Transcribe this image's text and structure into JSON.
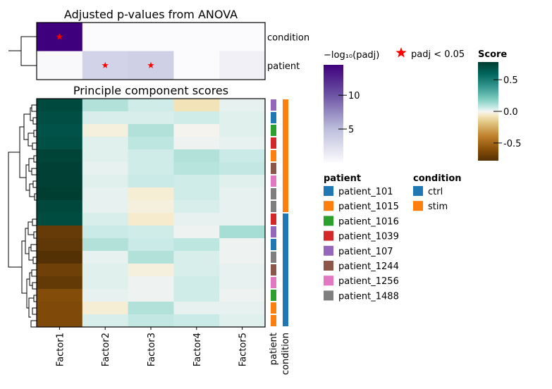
{
  "chart_data": [
    {
      "type": "heatmap",
      "title": "Adjusted p-values from ANOVA",
      "columns": [
        "Factor1",
        "Factor2",
        "Factor3",
        "Factor4",
        "Factor5"
      ],
      "rows": [
        "condition",
        "patient"
      ],
      "values": [
        [
          14.5,
          0.1,
          0.1,
          0.1,
          0.1
        ],
        [
          0.2,
          3.3,
          3.6,
          0.1,
          0.9
        ]
      ],
      "significant": [
        [
          true,
          false,
          false,
          false,
          false
        ],
        [
          false,
          true,
          true,
          false,
          false
        ]
      ],
      "colorbar": {
        "label": "−log₁₀(padj)",
        "ticks": [
          5,
          10
        ],
        "range": [
          0,
          14.5
        ],
        "colors": [
          "#fcfbfd",
          "#3f007d"
        ]
      },
      "marker_legend": {
        "symbol": "star",
        "color": "#ff0000",
        "label": "padj < 0.05"
      }
    },
    {
      "type": "heatmap",
      "title": "Principle component scores",
      "columns": [
        "Factor1",
        "Factor2",
        "Factor3",
        "Factor4",
        "Factor5"
      ],
      "values": [
        [
          0.72,
          0.1,
          0.05,
          -0.08,
          0.02
        ],
        [
          0.7,
          0.04,
          0.04,
          0.05,
          0.03
        ],
        [
          0.68,
          -0.03,
          0.1,
          -0.01,
          0.03
        ],
        [
          0.69,
          0.03,
          0.08,
          0.01,
          0.02
        ],
        [
          0.75,
          0.03,
          0.05,
          0.1,
          0.06
        ],
        [
          0.76,
          0.02,
          0.05,
          0.09,
          0.07
        ],
        [
          0.76,
          0.03,
          0.06,
          0.05,
          0.03
        ],
        [
          0.77,
          0.02,
          -0.04,
          0.05,
          0.02
        ],
        [
          0.73,
          0.02,
          -0.03,
          0.04,
          0.02
        ],
        [
          0.71,
          0.04,
          -0.05,
          0.02,
          0.02
        ],
        [
          -0.72,
          0.06,
          0.05,
          0.01,
          0.12
        ],
        [
          -0.74,
          0.1,
          0.06,
          0.08,
          0.01
        ],
        [
          -0.78,
          0.02,
          0.1,
          0.04,
          0.01
        ],
        [
          -0.69,
          0.03,
          -0.03,
          0.04,
          0.02
        ],
        [
          -0.73,
          0.03,
          0.01,
          0.05,
          0.02
        ],
        [
          -0.62,
          0.02,
          0.01,
          0.05,
          0.01
        ],
        [
          -0.64,
          -0.04,
          0.1,
          0.02,
          0.02
        ],
        [
          -0.64,
          0.04,
          0.07,
          0.06,
          0.03
        ]
      ],
      "row_patient": [
        "patient_107",
        "patient_101",
        "patient_1016",
        "patient_1039",
        "patient_1015",
        "patient_1244",
        "patient_1256",
        "patient_1488",
        "patient_1488",
        "patient_1039",
        "patient_107",
        "patient_101",
        "patient_1488",
        "patient_1244",
        "patient_1256",
        "patient_1016",
        "patient_1015",
        "patient_1015"
      ],
      "row_condition": [
        "stim",
        "stim",
        "stim",
        "stim",
        "stim",
        "stim",
        "stim",
        "stim",
        "stim",
        "ctrl",
        "ctrl",
        "ctrl",
        "ctrl",
        "ctrl",
        "ctrl",
        "ctrl",
        "ctrl",
        "ctrl"
      ],
      "annotation_labels": [
        "patient",
        "condition"
      ],
      "colorbar": {
        "label": "Score",
        "ticks": [
          0.5,
          0.0,
          -0.5
        ],
        "range": [
          -0.78,
          0.78
        ]
      }
    }
  ],
  "legend": {
    "patient_title": "patient",
    "patients": [
      {
        "label": "patient_101",
        "color": "#1f77b4"
      },
      {
        "label": "patient_1015",
        "color": "#ff7f0e"
      },
      {
        "label": "patient_1016",
        "color": "#2ca02c"
      },
      {
        "label": "patient_1039",
        "color": "#d62728"
      },
      {
        "label": "patient_107",
        "color": "#9467bd"
      },
      {
        "label": "patient_1244",
        "color": "#8c564b"
      },
      {
        "label": "patient_1256",
        "color": "#e377c2"
      },
      {
        "label": "patient_1488",
        "color": "#7f7f7f"
      }
    ],
    "condition_title": "condition",
    "conditions": [
      {
        "label": "ctrl",
        "color": "#1f77b4"
      },
      {
        "label": "stim",
        "color": "#ff7f0e"
      }
    ]
  }
}
